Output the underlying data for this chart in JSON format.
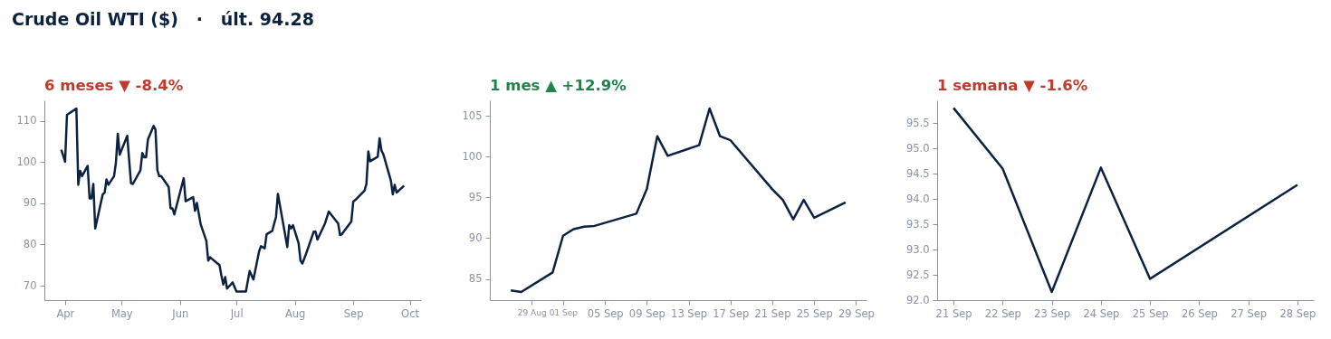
{
  "chart_data": [
    {
      "type": "line",
      "title": "Crude Oil WTI ($)   ·   últ. 94.28",
      "subtitle": "6 meses  ▼ -8.4%",
      "x": [
        "--03-30",
        "--04-01",
        "--04-02",
        "--04-07",
        "--04-08",
        "--04-09",
        "--04-10",
        "--04-13",
        "--04-14",
        "--04-15",
        "--04-16",
        "--04-17",
        "--04-21",
        "--04-22",
        "--04-23",
        "--04-24",
        "--04-27",
        "--04-28",
        "--04-29",
        "--04-30",
        "--05-04",
        "--05-06",
        "--05-07",
        "--05-11",
        "--05-12",
        "--05-13",
        "--05-14",
        "--05-15",
        "--05-18",
        "--05-19",
        "--05-20",
        "--05-21",
        "--05-22",
        "--05-26",
        "--05-27",
        "--05-28",
        "--05-29",
        "--06-03",
        "--06-04",
        "--06-08",
        "--06-09",
        "--06-10",
        "--06-12",
        "--06-15",
        "--06-16",
        "--06-17",
        "--06-22",
        "--06-23",
        "--06-24",
        "--06-25",
        "--06-26",
        "--06-29",
        "--07-01",
        "--07-06",
        "--07-08",
        "--07-10",
        "--07-13",
        "--07-14",
        "--07-16",
        "--07-17",
        "--07-20",
        "--07-22",
        "--07-23",
        "--07-28",
        "--07-29",
        "--07-30",
        "--07-31",
        "--08-03",
        "--08-04",
        "--08-05",
        "--08-07",
        "--08-11",
        "--08-12",
        "--08-13",
        "--08-17",
        "--08-19",
        "--08-24",
        "--08-25",
        "--08-26",
        "--08-28",
        "--08-31",
        "--09-01",
        "--09-03",
        "--09-07",
        "--09-08",
        "--09-09",
        "--09-10",
        "--09-14",
        "--09-15",
        "--09-16",
        "--09-17",
        "--09-21",
        "--09-22",
        "--09-23",
        "--09-24",
        "--09-28"
      ],
      "series": [
        {
          "color": "#0d2240",
          "values": [
            103.0,
            100.1,
            111.5,
            113.0,
            94.5,
            97.9,
            96.6,
            99.1,
            91.2,
            91.2,
            94.7,
            83.9,
            92.2,
            92.6,
            95.8,
            94.5,
            96.6,
            99.9,
            106.9,
            101.8,
            106.4,
            94.9,
            94.7,
            98.0,
            102.2,
            101.2,
            101.2,
            105.5,
            108.8,
            107.9,
            98.0,
            96.6,
            96.6,
            94.0,
            88.8,
            88.8,
            87.3,
            96.1,
            90.5,
            91.5,
            88.2,
            90.1,
            84.9,
            80.9,
            76.1,
            76.9,
            75.0,
            72.5,
            70.3,
            72.1,
            69.3,
            70.8,
            68.6,
            68.6,
            73.6,
            71.5,
            78.3,
            79.6,
            79.1,
            82.5,
            83.3,
            86.7,
            92.3,
            79.4,
            84.7,
            83.9,
            84.7,
            80.3,
            76.1,
            75.4,
            77.8,
            83.1,
            83.1,
            81.2,
            85.1,
            88.0,
            85.1,
            82.3,
            82.5,
            83.8,
            85.6,
            90.4,
            91.2,
            93.1,
            94.7,
            102.6,
            100.2,
            101.3,
            105.8,
            102.8,
            101.9,
            95.5,
            92.2,
            94.5,
            92.6,
            94.3
          ]
        }
      ],
      "xlim": [
        "--03-21",
        "--10-07"
      ],
      "xticks": [
        {
          "value": "--04-01",
          "label": "Apr"
        },
        {
          "value": "--05-01",
          "label": "May"
        },
        {
          "value": "--06-01",
          "label": "Jun"
        },
        {
          "value": "--07-01",
          "label": "Jul"
        },
        {
          "value": "--08-01",
          "label": "Aug"
        },
        {
          "value": "--09-01",
          "label": "Sep"
        },
        {
          "value": "--10-01",
          "label": "Oct"
        }
      ],
      "ylim": [
        66.5,
        115
      ],
      "yticks": [
        70,
        80,
        90,
        100,
        110
      ]
    },
    {
      "type": "line",
      "subtitle": "1 mes  ▲ +12.9%",
      "x": [
        "--08-27",
        "--08-28",
        "--08-31",
        "--09-01",
        "--09-02",
        "--09-03",
        "--09-04",
        "--09-08",
        "--09-09",
        "--09-10",
        "--09-11",
        "--09-14",
        "--09-15",
        "--09-16",
        "--09-17",
        "--09-21",
        "--09-22",
        "--09-23",
        "--09-24",
        "--09-25",
        "--09-28"
      ],
      "series": [
        {
          "color": "#0d2240",
          "values": [
            83.6,
            83.4,
            85.8,
            90.3,
            91.1,
            91.4,
            91.5,
            93.0,
            96.0,
            102.5,
            100.1,
            101.4,
            105.9,
            102.5,
            102.0,
            96.0,
            94.7,
            92.3,
            94.7,
            92.5,
            94.4
          ]
        }
      ],
      "xlim": [
        "--08-25",
        "--09-30"
      ],
      "xticks": [
        {
          "value": "--08-29",
          "label": "29 Aug"
        },
        {
          "value": "--09-01",
          "label": "01 Sep"
        },
        {
          "value": "--09-05",
          "label": "05 Sep"
        },
        {
          "value": "--09-09",
          "label": "09 Sep"
        },
        {
          "value": "--09-13",
          "label": "13 Sep"
        },
        {
          "value": "--09-17",
          "label": "17 Sep"
        },
        {
          "value": "--09-21",
          "label": "21 Sep"
        },
        {
          "value": "--09-25",
          "label": "25 Sep"
        },
        {
          "value": "--09-29",
          "label": "29 Sep"
        }
      ],
      "ylim": [
        82.4,
        106.9
      ],
      "yticks": [
        85,
        90,
        95,
        100,
        105
      ]
    },
    {
      "type": "line",
      "subtitle": "1 semana  ▼ -1.6%",
      "x": [
        "--09-21",
        "--09-22",
        "--09-23",
        "--09-24",
        "--09-25",
        "--09-28"
      ],
      "series": [
        {
          "color": "#0d2240",
          "values": [
            95.8,
            94.6,
            92.16,
            94.62,
            92.42,
            94.28
          ]
        }
      ],
      "xlim": [
        "--09-20T16:00",
        "--09-28T08:00"
      ],
      "xticks": [
        {
          "value": "--09-21",
          "label": "21 Sep"
        },
        {
          "value": "--09-22",
          "label": "22 Sep"
        },
        {
          "value": "--09-23",
          "label": "23 Sep"
        },
        {
          "value": "--09-24",
          "label": "24 Sep"
        },
        {
          "value": "--09-25",
          "label": "25 Sep"
        },
        {
          "value": "--09-26",
          "label": "26 Sep"
        },
        {
          "value": "--09-27",
          "label": "27 Sep"
        },
        {
          "value": "--09-28",
          "label": "28 Sep"
        }
      ],
      "ylim": [
        92.0,
        95.95
      ],
      "yticks": [
        {
          "value": 92,
          "label": "92.0"
        },
        {
          "value": 92.5,
          "label": "92.5"
        },
        {
          "value": 93,
          "label": "93.0"
        },
        {
          "value": 93.5,
          "label": "93.5"
        },
        {
          "value": 94,
          "label": "94.0"
        },
        {
          "value": 94.5,
          "label": "94.5"
        },
        {
          "value": 95,
          "label": "95.0"
        },
        {
          "value": 95.5,
          "label": "95.5"
        }
      ]
    }
  ]
}
